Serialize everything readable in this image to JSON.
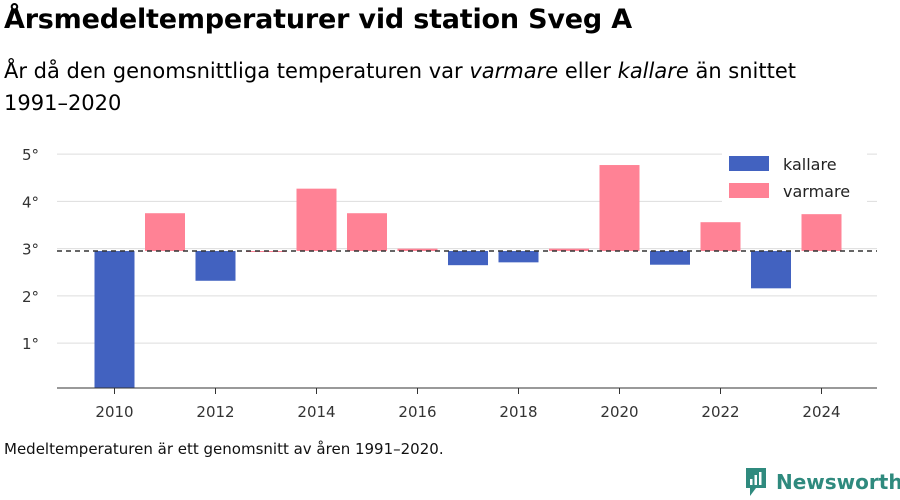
{
  "title": "Årsmedeltemperaturer vid station Sveg A",
  "subtitle": {
    "part1": "År då den genomsnittliga temperaturen var ",
    "warm_word": "varmare",
    "part2": " eller ",
    "cold_word": "kallare",
    "part3": " än snittet 1991–2020"
  },
  "footnote": "Medeltemperaturen är ett genomsnitt av åren 1991–2020.",
  "brand": {
    "name": "Newsworthy",
    "icon": "newsworthy-logo-icon",
    "color": "#2f8a7e"
  },
  "chart_data": {
    "type": "bar",
    "baseline": 2.95,
    "baseline_style": "dashed",
    "ylim": [
      0.05,
      5.3
    ],
    "yticks": [
      1,
      2,
      3,
      4,
      5
    ],
    "ytick_labels": [
      "1°",
      "2°",
      "3°",
      "4°",
      "5°"
    ],
    "xticks": [
      2010,
      2012,
      2014,
      2016,
      2018,
      2020,
      2022,
      2024
    ],
    "xtick_labels": [
      "2010",
      "2012",
      "2014",
      "2016",
      "2018",
      "2020",
      "2022",
      "2024"
    ],
    "grid": true,
    "legend_position": "top-right",
    "series": [
      {
        "name": "kallare",
        "color": "#4262c0"
      },
      {
        "name": "varmare",
        "color": "#ff8295"
      }
    ],
    "data": [
      {
        "year": 2010,
        "value": 0.05
      },
      {
        "year": 2011,
        "value": 3.75
      },
      {
        "year": 2012,
        "value": 2.32
      },
      {
        "year": 2013,
        "value": 2.95
      },
      {
        "year": 2014,
        "value": 4.27
      },
      {
        "year": 2015,
        "value": 3.75
      },
      {
        "year": 2016,
        "value": 3.0
      },
      {
        "year": 2017,
        "value": 2.65
      },
      {
        "year": 2018,
        "value": 2.71
      },
      {
        "year": 2019,
        "value": 3.0
      },
      {
        "year": 2020,
        "value": 4.77
      },
      {
        "year": 2021,
        "value": 2.66
      },
      {
        "year": 2022,
        "value": 3.56
      },
      {
        "year": 2023,
        "value": 2.16
      },
      {
        "year": 2024,
        "value": 3.73
      }
    ]
  }
}
